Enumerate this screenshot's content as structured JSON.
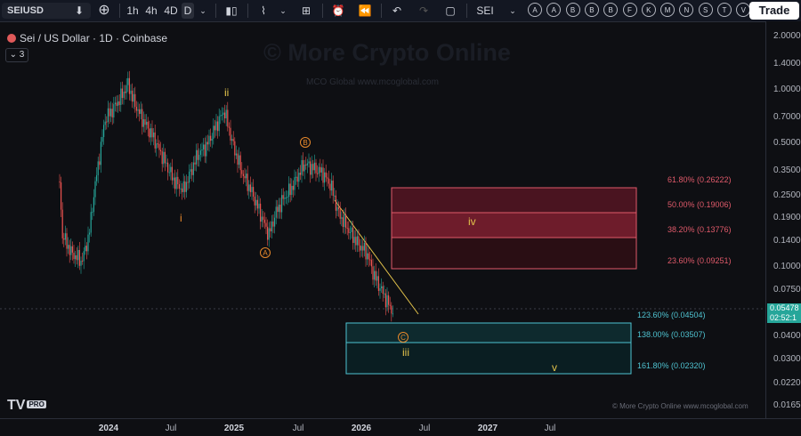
{
  "toolbar": {
    "symbol": "SEIUSD",
    "intervals": [
      "1h",
      "4h",
      "4D",
      "D"
    ],
    "compare_label": "SEI",
    "drawing_buttons": [
      "A",
      "A",
      "B",
      "B",
      "B",
      "F",
      "K",
      "M",
      "N",
      "S",
      "T",
      "V"
    ],
    "trade_label": "Trade"
  },
  "legend": {
    "title": "Sei / US Dollar · 1D · Coinbase",
    "collapse_count": "3"
  },
  "watermark": {
    "main": "© More Crypto Online",
    "sub": "MCO Global    www.mcoglobal.com"
  },
  "price_axis": [
    "2.00000",
    "1.40000",
    "1.00000",
    "0.70000",
    "0.50000",
    "0.35000",
    "0.25000",
    "0.19000",
    "0.14000",
    "0.10000",
    "0.07500",
    "0.04000",
    "0.03000",
    "0.02200",
    "0.01650"
  ],
  "current_price": {
    "value": "0.05478",
    "countdown": "02:52:1"
  },
  "time_axis": [
    {
      "label": "2024",
      "bold": true
    },
    {
      "label": "Jul",
      "bold": false
    },
    {
      "label": "2025",
      "bold": true
    },
    {
      "label": "Jul",
      "bold": false
    },
    {
      "label": "2026",
      "bold": true
    },
    {
      "label": "Jul",
      "bold": false
    },
    {
      "label": "2027",
      "bold": true
    },
    {
      "label": "Jul",
      "bold": false
    }
  ],
  "fib_upper": [
    "61.80% (0.26222)",
    "50.00% (0.19006)",
    "38.20% (0.13776)",
    "23.60% (0.09251)"
  ],
  "fib_lower": [
    "123.60% (0.04504)",
    "138.00% (0.03507)",
    "161.80% (0.02320)"
  ],
  "wave_labels": {
    "i": "i",
    "ii": "ii",
    "iii": "iii",
    "iv": "iv",
    "v": "v",
    "A": "A",
    "B": "B",
    "C": "C"
  },
  "footer": {
    "logo_text": "TV",
    "logo_badge": "PRO",
    "copyright": "© More Crypto Online    www.mcoglobal.com"
  },
  "colors": {
    "background": "#0e0f13",
    "up": "#26a69a",
    "down": "#ef5350",
    "wave_orange": "#e8892b",
    "wave_yellow": "#e3c34b",
    "fib_red": "#e05a6a",
    "fib_cyan": "#4fc3d1"
  }
}
